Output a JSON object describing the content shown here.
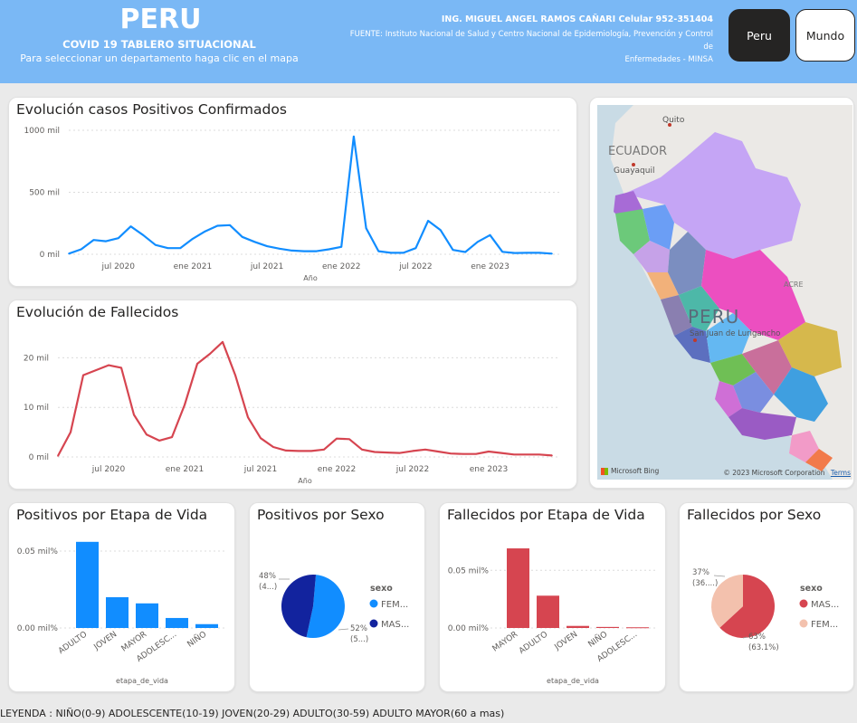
{
  "header": {
    "title": "PERU",
    "subtitle": "COVID 19 TABLERO SITUACIONAL",
    "instruction": "Para seleccionar un departamento haga clic en el mapa",
    "author": "ING. MIGUEL ANGEL RAMOS CAÑARI Celular 952-351404",
    "source_line1": "FUENTE: Instituto Nacional de Salud y Centro Nacional de Epidemiología, Prevención y Control de",
    "source_line2": "Enfermedades - MINSA",
    "btn_peru": "Peru",
    "btn_mundo": "Mundo"
  },
  "colors": {
    "header_bg": "#7ab8f5",
    "blue": "#118dff",
    "red": "#d64550",
    "dark_blue": "#12239e",
    "pink": "#f3c1ad"
  },
  "cards": {
    "positivos_title": "Evolución casos Positivos Confirmados",
    "fallecidos_title": "Evolución de Fallecidos",
    "etapa_pos_title": "Positivos por Etapa de Vida",
    "sexo_pos_title": "Positivos por Sexo",
    "etapa_fal_title": "Fallecidos por Etapa de Vida",
    "sexo_fal_title": "Fallecidos por Sexo"
  },
  "map": {
    "labels": {
      "quito": "Quito",
      "ecuador": "ECUADOR",
      "guayaquil": "Guayaquil",
      "peru": "PERU",
      "city": "San Juan de Lurigancho",
      "acre": "ACRE"
    },
    "brand": "Microsoft Bing",
    "copyright": "© 2023 Microsoft Corporation",
    "terms": "Terms"
  },
  "legend_text": "LEYENDA : NIÑO(0-9) ADOLESCENTE(10-19) JOVEN(20-29) ADULTO(30-59) ADULTO MAYOR(60 a mas)",
  "chart_data": [
    {
      "type": "line",
      "title": "Evolución casos Positivos Confirmados",
      "xlabel": "Año",
      "ylabel": "",
      "ylim": [
        0,
        1000000
      ],
      "yticks": [
        "0 mil",
        "500 mil",
        "1000 mil"
      ],
      "xticks": [
        "jul 2020",
        "ene 2021",
        "jul 2021",
        "ene 2022",
        "jul 2022",
        "ene 2023"
      ],
      "grid": true,
      "color": "#118dff",
      "x": [
        "2020-03",
        "2020-04",
        "2020-05",
        "2020-06",
        "2020-07",
        "2020-08",
        "2020-09",
        "2020-10",
        "2020-11",
        "2020-12",
        "2021-01",
        "2021-02",
        "2021-03",
        "2021-04",
        "2021-05",
        "2021-06",
        "2021-07",
        "2021-08",
        "2021-09",
        "2021-10",
        "2021-11",
        "2021-12",
        "2022-01",
        "2022-02",
        "2022-03",
        "2022-04",
        "2022-05",
        "2022-06",
        "2022-07",
        "2022-08",
        "2022-09",
        "2022-10",
        "2022-11",
        "2022-12",
        "2023-01",
        "2023-02",
        "2023-03",
        "2023-04",
        "2023-05",
        "2023-06"
      ],
      "values": [
        5000,
        40000,
        115000,
        105000,
        130000,
        225000,
        155000,
        75000,
        50000,
        50000,
        125000,
        185000,
        230000,
        235000,
        140000,
        100000,
        65000,
        45000,
        30000,
        25000,
        25000,
        40000,
        60000,
        950000,
        210000,
        25000,
        12000,
        12000,
        50000,
        270000,
        195000,
        35000,
        18000,
        100000,
        155000,
        20000,
        10000,
        12000,
        12000,
        5000
      ]
    },
    {
      "type": "line",
      "title": "Evolución de Fallecidos",
      "xlabel": "Año",
      "ylabel": "",
      "ylim": [
        0,
        25000
      ],
      "yticks": [
        "0 mil",
        "10 mil",
        "20 mil"
      ],
      "xticks": [
        "jul 2020",
        "ene 2021",
        "jul 2021",
        "ene 2022",
        "jul 2022",
        "ene 2023"
      ],
      "grid": true,
      "color": "#d64550",
      "x": [
        "2020-03",
        "2020-04",
        "2020-05",
        "2020-06",
        "2020-07",
        "2020-08",
        "2020-09",
        "2020-10",
        "2020-11",
        "2020-12",
        "2021-01",
        "2021-02",
        "2021-03",
        "2021-04",
        "2021-05",
        "2021-06",
        "2021-07",
        "2021-08",
        "2021-09",
        "2021-10",
        "2021-11",
        "2021-12",
        "2022-01",
        "2022-02",
        "2022-03",
        "2022-04",
        "2022-05",
        "2022-06",
        "2022-07",
        "2022-08",
        "2022-09",
        "2022-10",
        "2022-11",
        "2022-12",
        "2023-01",
        "2023-02",
        "2023-03",
        "2023-04",
        "2023-05",
        "2023-06"
      ],
      "values": [
        200,
        5000,
        16500,
        17500,
        18500,
        18000,
        8500,
        4500,
        3300,
        4000,
        10500,
        18800,
        20800,
        23200,
        16500,
        8000,
        3800,
        2000,
        1300,
        1200,
        1200,
        1500,
        3700,
        3600,
        1500,
        1000,
        900,
        800,
        1200,
        1500,
        1100,
        700,
        600,
        600,
        1100,
        800,
        500,
        500,
        500,
        300
      ]
    },
    {
      "type": "bar",
      "title": "Positivos por Etapa de Vida",
      "xlabel": "etapa_de_vida",
      "ylabel": "",
      "ylim": [
        0,
        0.06
      ],
      "yticks": [
        "0.00 mil%",
        "0.05 mil%"
      ],
      "grid": true,
      "color": "#118dff",
      "categories": [
        "ADULTO",
        "JOVEN",
        "MAYOR",
        "ADOLESC...",
        "NIÑO"
      ],
      "values": [
        0.056,
        0.02,
        0.016,
        0.0065,
        0.0025
      ]
    },
    {
      "type": "pie",
      "title": "Positivos por Sexo",
      "legend_title": "sexo",
      "legend_position": "right",
      "categories": [
        "FEM...",
        "MAS..."
      ],
      "values": [
        52,
        48
      ],
      "colors": [
        "#118dff",
        "#12239e"
      ],
      "data_labels": [
        "52%\n(5...)",
        "48%\n(4...)"
      ]
    },
    {
      "type": "bar",
      "title": "Fallecidos por Etapa de Vida",
      "xlabel": "etapa_de_vida",
      "ylabel": "",
      "ylim": [
        0,
        0.08
      ],
      "yticks": [
        "0.00 mil%",
        "0.05 mil%"
      ],
      "grid": true,
      "color": "#d64550",
      "categories": [
        "MAYOR",
        "ADULTO",
        "JOVEN",
        "NIÑO",
        "ADOLESC..."
      ],
      "values": [
        0.069,
        0.028,
        0.0018,
        0.0009,
        0.0006
      ]
    },
    {
      "type": "pie",
      "title": "Fallecidos por Sexo",
      "legend_title": "sexo",
      "legend_position": "right",
      "categories": [
        "MAS...",
        "FEM..."
      ],
      "values": [
        63.1,
        36.9
      ],
      "colors": [
        "#d64550",
        "#f3c1ad"
      ],
      "data_labels": [
        "63%\n(63.1%)",
        "37%\n(36....)"
      ]
    }
  ]
}
